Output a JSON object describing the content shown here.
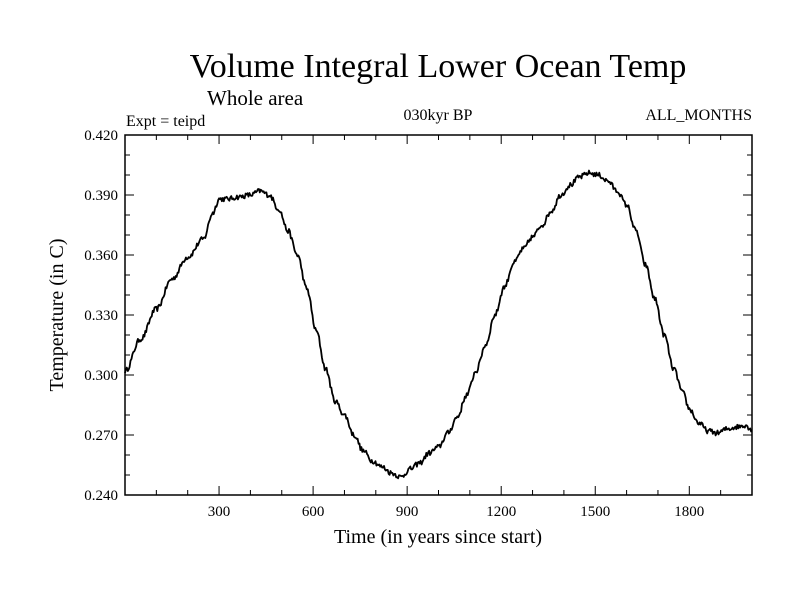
{
  "chart_data": {
    "type": "line",
    "title": "Volume Integral Lower Ocean Temp",
    "subtitle": "Whole area",
    "experiment": "Expt = teipd",
    "period": "030kyr BP",
    "months": "ALL_MONTHS",
    "xlabel": "Time (in years since start)",
    "ylabel": "Temperature (in C)",
    "xlim": [
      0,
      2000
    ],
    "ylim": [
      0.24,
      0.42
    ],
    "xticks": [
      300,
      600,
      900,
      1200,
      1500,
      1800
    ],
    "xtick_labels": [
      "300",
      "600",
      "900",
      "1200",
      "1500",
      "1800"
    ],
    "yticks": [
      0.24,
      0.27,
      0.3,
      0.33,
      0.36,
      0.39,
      0.42
    ],
    "ytick_labels": [
      "0.240",
      "0.270",
      "0.300",
      "0.330",
      "0.360",
      "0.390",
      "0.420"
    ],
    "grid": false,
    "series": [
      {
        "name": "Lower Ocean Temp",
        "color": "#000000",
        "x": [
          0,
          50,
          100,
          150,
          200,
          250,
          280,
          300,
          330,
          360,
          400,
          430,
          460,
          490,
          520,
          550,
          580,
          610,
          640,
          670,
          700,
          730,
          760,
          790,
          820,
          850,
          880,
          910,
          940,
          970,
          1000,
          1030,
          1060,
          1090,
          1120,
          1150,
          1180,
          1210,
          1240,
          1270,
          1300,
          1330,
          1360,
          1390,
          1420,
          1450,
          1480,
          1510,
          1540,
          1570,
          1600,
          1630,
          1660,
          1690,
          1720,
          1750,
          1780,
          1800,
          1830,
          1860,
          1890,
          1920,
          1950,
          1980,
          2000
        ],
        "y": [
          0.302,
          0.318,
          0.333,
          0.348,
          0.359,
          0.368,
          0.381,
          0.388,
          0.388,
          0.389,
          0.39,
          0.392,
          0.39,
          0.383,
          0.372,
          0.36,
          0.343,
          0.322,
          0.303,
          0.287,
          0.28,
          0.27,
          0.262,
          0.257,
          0.254,
          0.251,
          0.249,
          0.253,
          0.256,
          0.261,
          0.264,
          0.271,
          0.279,
          0.29,
          0.302,
          0.315,
          0.33,
          0.344,
          0.356,
          0.363,
          0.369,
          0.375,
          0.382,
          0.39,
          0.395,
          0.399,
          0.401,
          0.4,
          0.397,
          0.392,
          0.385,
          0.372,
          0.355,
          0.338,
          0.32,
          0.303,
          0.291,
          0.283,
          0.276,
          0.272,
          0.271,
          0.273,
          0.274,
          0.275,
          0.272
        ]
      }
    ]
  }
}
